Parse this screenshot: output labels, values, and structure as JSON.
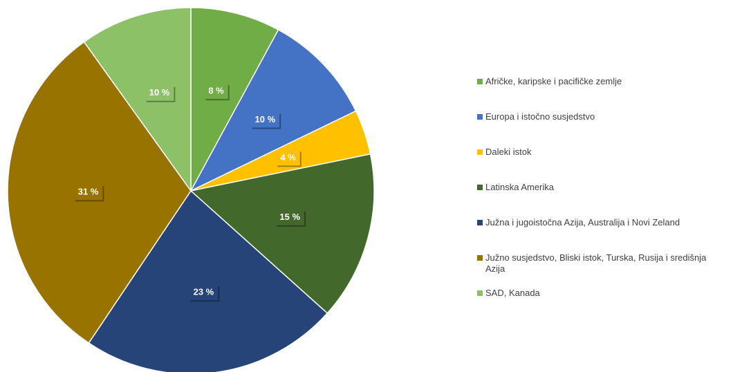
{
  "chart_data": {
    "type": "pie",
    "categories": [
      "Afričke, karipske i pacifičke zemlje",
      "Europa i istočno susjedstvo",
      "Daleki istok",
      "Latinska Amerika",
      "Južna i jugoistočna Azija, Australija i Novi Zeland",
      "Južno susjedstvo, Bliski istok, Turska, Rusija i središnja Azija",
      "SAD, Kanada"
    ],
    "values": [
      8,
      10,
      4,
      15,
      23,
      31,
      10
    ],
    "value_labels": [
      "8 %",
      "10 %",
      "4 %",
      "15 %",
      "23 %",
      "31 %",
      "10 %"
    ],
    "colors": [
      "#70ad47",
      "#4472c4",
      "#ffc000",
      "#43682b",
      "#264478",
      "#997300",
      "#8cc168"
    ],
    "legend": "right"
  }
}
